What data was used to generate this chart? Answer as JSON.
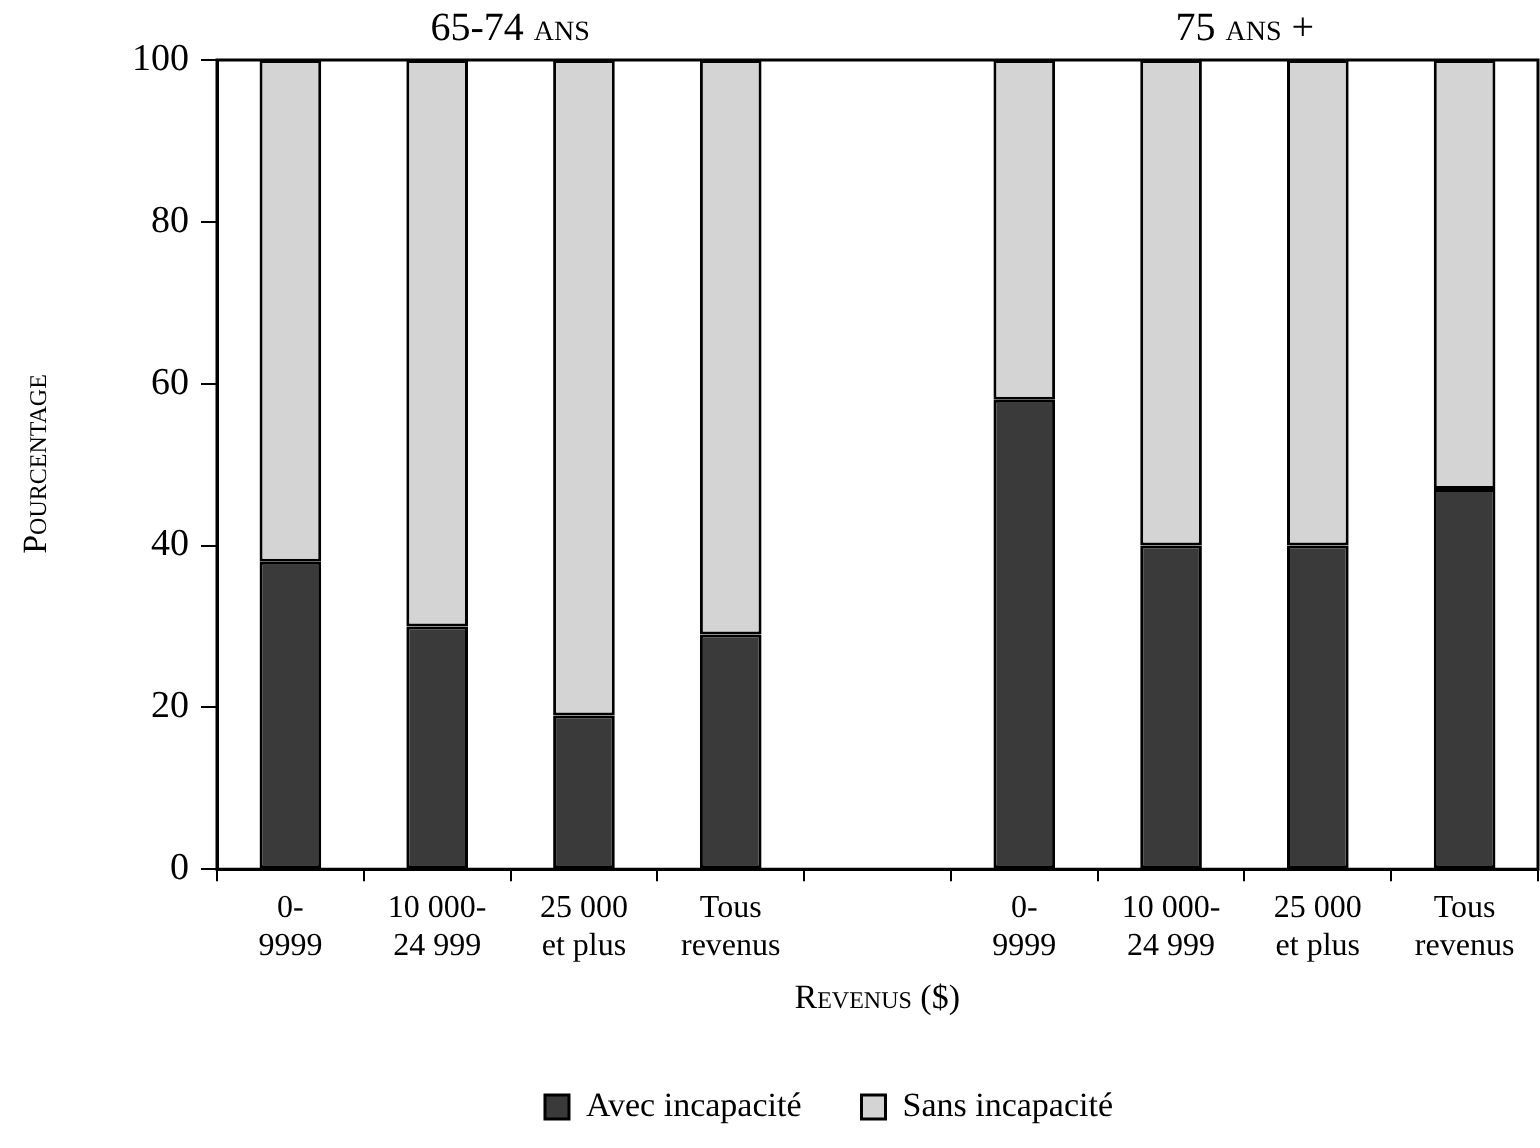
{
  "chart_data": {
    "type": "bar",
    "stacked": true,
    "title": null,
    "categories": [
      "0-\n9999",
      "10 000-\n24 999",
      "25 000\net plus",
      "Tous\nrevenus",
      null,
      "0-\n9999",
      "10 000-\n24 999",
      "25 000\net plus",
      "Tous\nrevenus"
    ],
    "series": [
      {
        "name": "Avec incapacité",
        "color": "#3a3a3a",
        "values": [
          38,
          30,
          19,
          29,
          null,
          58,
          40,
          40,
          47
        ]
      },
      {
        "name": "Sans incapacité",
        "color": "#d4d4d4",
        "values": [
          62,
          70,
          81,
          71,
          null,
          42,
          60,
          60,
          53
        ]
      }
    ],
    "ylim": [
      0,
      100
    ],
    "yticks": [
      0,
      20,
      40,
      60,
      80,
      100
    ],
    "ylabel": "Pourcentage",
    "xlabel": "Revenus ($)",
    "annotations": [
      "65-74 ans",
      "75 ans +"
    ],
    "legend": "bottom",
    "grid": false
  }
}
